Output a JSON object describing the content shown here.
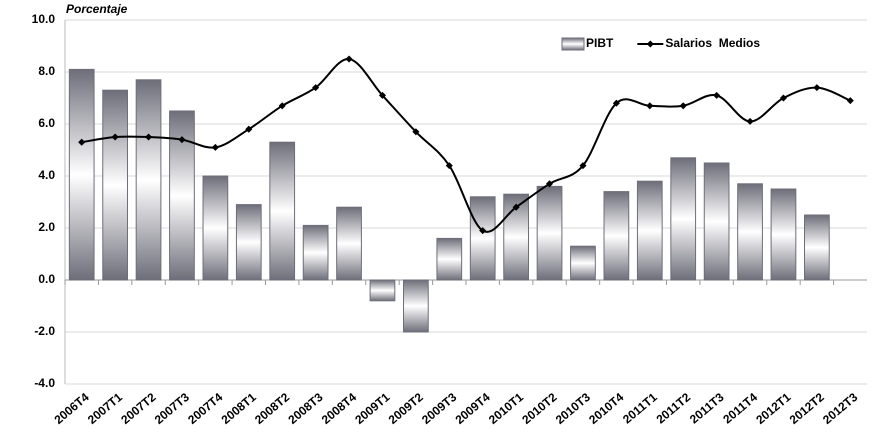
{
  "chart_data": {
    "type": "bar",
    "title": "Porcentaje",
    "categories": [
      "2006T4",
      "2007T1",
      "2007T2",
      "2007T3",
      "2007T4",
      "2008T1",
      "2008T2",
      "2008T3",
      "2008T4",
      "2009T1",
      "2009T2",
      "2009T3",
      "2009T4",
      "2010T1",
      "2010T2",
      "2010T3",
      "2010T4",
      "2011T1",
      "2011T2",
      "2011T3",
      "2011T4",
      "2012T1",
      "2012T2",
      "2012T3"
    ],
    "series": [
      {
        "name": "PIBT",
        "type": "bar",
        "color": "#6e6e7a",
        "values": [
          8.1,
          7.3,
          7.7,
          6.5,
          4.0,
          2.9,
          5.3,
          2.1,
          2.8,
          -0.8,
          -2.0,
          1.6,
          3.2,
          3.3,
          3.6,
          1.3,
          3.4,
          3.8,
          4.7,
          4.5,
          3.7,
          3.5,
          2.5,
          null
        ]
      },
      {
        "name": "Salarios  Medios",
        "type": "line",
        "color": "#000000",
        "values": [
          5.3,
          5.5,
          5.5,
          5.4,
          5.1,
          5.8,
          6.7,
          7.4,
          8.5,
          7.1,
          5.7,
          4.4,
          1.9,
          2.8,
          3.7,
          4.4,
          6.8,
          6.7,
          6.7,
          7.1,
          6.1,
          7.0,
          7.4,
          6.9
        ]
      }
    ],
    "ylim": [
      -4,
      10
    ],
    "yticks": [
      {
        "value": -4,
        "label": "-4.0"
      },
      {
        "value": -2,
        "label": "-2.0"
      },
      {
        "value": 0,
        "label": "0.0"
      },
      {
        "value": 2,
        "label": "2.0"
      },
      {
        "value": 4,
        "label": "4.0"
      },
      {
        "value": 6,
        "label": "6.0"
      },
      {
        "value": 8,
        "label": "8.0"
      },
      {
        "value": 10,
        "label": "10.0"
      }
    ],
    "grid": true,
    "legend": "upper right"
  }
}
